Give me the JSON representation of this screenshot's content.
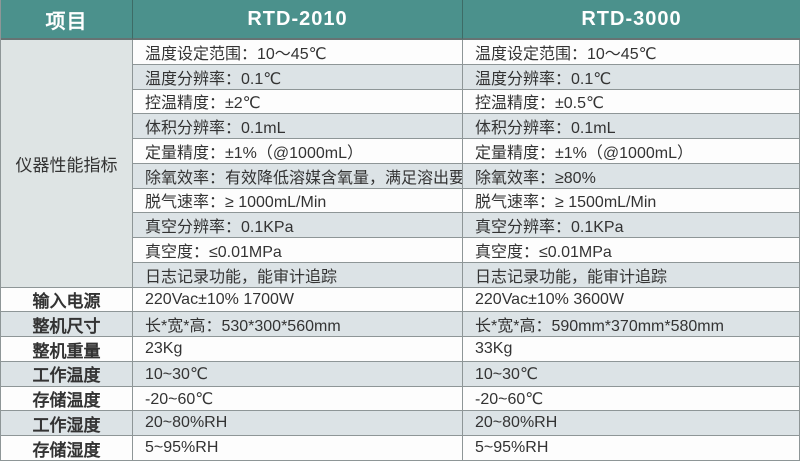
{
  "header": {
    "item_col": "项目",
    "model_2010": "RTD-2010",
    "model_3000": "RTD-3000"
  },
  "performance_group_label": "仪器性能指标",
  "performance_rows": [
    {
      "rtd2010": "温度设定范围：10～45℃",
      "rtd3000": "温度设定范围：10～45℃"
    },
    {
      "rtd2010": "温度分辨率：0.1℃",
      "rtd3000": "温度分辨率：0.1℃"
    },
    {
      "rtd2010": "控温精度：±2℃",
      "rtd3000": "控温精度：±0.5℃"
    },
    {
      "rtd2010": "体积分辨率：0.1mL",
      "rtd3000": "体积分辨率：0.1mL"
    },
    {
      "rtd2010": "定量精度：±1%（@1000mL）",
      "rtd3000": "定量精度：±1%（@1000mL）"
    },
    {
      "rtd2010": "除氧效率：有效降低溶媒含氧量，满足溶出要求",
      "rtd3000": "除氧效率：≥80%"
    },
    {
      "rtd2010": "脱气速率：≥ 1000mL/Min",
      "rtd3000": "脱气速率：≥ 1500mL/Min"
    },
    {
      "rtd2010": "真空分辨率：0.1KPa",
      "rtd3000": "真空分辨率：0.1KPa"
    },
    {
      "rtd2010": "真空度：≤0.01MPa",
      "rtd3000": "真空度：≤0.01MPa"
    },
    {
      "rtd2010": "日志记录功能，能审计追踪",
      "rtd3000": "日志记录功能，能审计追踪"
    }
  ],
  "general_rows": [
    {
      "label": "输入电源",
      "rtd2010": "220Vac±10% 1700W",
      "rtd3000": "220Vac±10% 3600W"
    },
    {
      "label": "整机尺寸",
      "rtd2010": "长*宽*高：530*300*560mm",
      "rtd3000": "长*宽*高：590mm*370mm*580mm"
    },
    {
      "label": "整机重量",
      "rtd2010": "23Kg",
      "rtd3000": "33Kg"
    },
    {
      "label": "工作温度",
      "rtd2010": "10~30℃",
      "rtd3000": "10~30℃"
    },
    {
      "label": "存储温度",
      "rtd2010": "-20~60℃",
      "rtd3000": "-20~60℃"
    },
    {
      "label": "工作湿度",
      "rtd2010": "20~80%RH",
      "rtd3000": "20~80%RH"
    },
    {
      "label": "存储湿度",
      "rtd2010": "5~95%RH",
      "rtd3000": "5~95%RH"
    }
  ],
  "colors": {
    "header_bg": "#4b918c",
    "header_text": "#ffffff",
    "alt_row_bg": "#dce3e6",
    "group_cell_bg": "#dee4e4",
    "border": "#8e9697",
    "text": "#333333"
  }
}
